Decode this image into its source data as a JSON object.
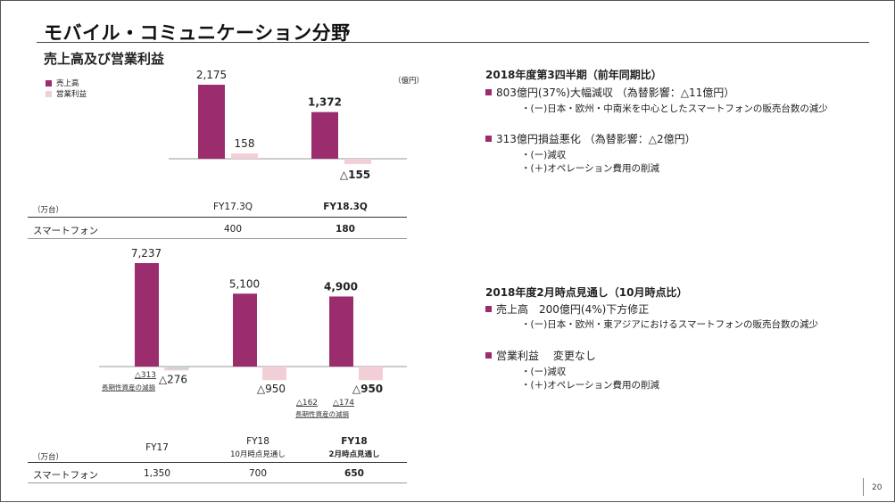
{
  "title": "モバイル・コミュニケーション分野",
  "subtitle": "売上高及び営業利益",
  "legend": {
    "sales": "売上高",
    "op_income": "営業利益"
  },
  "unit_oku": "（億円）",
  "unit_man": "（万台）",
  "row_label": "スマートフォン",
  "colors": {
    "sales": "#9b2d6e",
    "op_income": "#f2cfd7",
    "accent": "#9b2d6e"
  },
  "chart_data": [
    {
      "type": "bar",
      "title": "売上高及び営業利益 (FY17.3Q vs FY18.3Q)",
      "categories": [
        "FY17.3Q",
        "FY18.3Q"
      ],
      "series": [
        {
          "name": "売上高",
          "values": [
            2175,
            1372
          ],
          "labels": [
            "2,175",
            "1,372"
          ]
        },
        {
          "name": "営業利益",
          "values": [
            158,
            -155
          ],
          "labels": [
            "158",
            "△155"
          ]
        }
      ],
      "ylabel": "（億円）",
      "table": {
        "label": "スマートフォン",
        "unit": "（万台）",
        "values": [
          "400",
          "180"
        ]
      }
    },
    {
      "type": "bar",
      "title": "売上高及び営業利益 (FY17, FY18 見通し)",
      "categories": [
        "FY17",
        "FY18 10月時点見通し",
        "FY18 2月時点見通し"
      ],
      "category_main": [
        "FY17",
        "FY18",
        "FY18"
      ],
      "category_sub": [
        "",
        "10月時点見通し",
        "2月時点見通し"
      ],
      "series": [
        {
          "name": "売上高",
          "values": [
            7237,
            5100,
            4900
          ],
          "labels": [
            "7,237",
            "5,100",
            "4,900"
          ]
        },
        {
          "name": "営業利益",
          "values": [
            -276,
            -950,
            -950
          ],
          "labels": [
            "△276",
            "△950",
            "△950"
          ]
        }
      ],
      "annotations": [
        {
          "category": "FY17",
          "value": -313,
          "label": "△313",
          "note": "長期性資産の減損"
        },
        {
          "category": "FY18 10月時点見通し",
          "value": -162,
          "label": "△162",
          "note": "長期性資産の減損"
        },
        {
          "category": "FY18 2月時点見通し",
          "value": -174,
          "label": "△174",
          "note": ""
        }
      ],
      "table": {
        "label": "スマートフォン",
        "unit": "（万台）",
        "values": [
          "1,350",
          "700",
          "650"
        ]
      }
    }
  ],
  "right": {
    "q3": {
      "heading": "2018年度第3四半期（前年同期比）",
      "b1": "803億円(37%)大幅減収 （為替影響：△11億円）",
      "b1_sub": "・(ー)日本・欧州・中南米を中心としたスマートフォンの販売台数の減少",
      "b2": "313億円損益悪化 （為替影響：△2億円）",
      "b2_sub1": "・(ー)減収",
      "b2_sub2": "・(＋)オペレーション費用の削減"
    },
    "fc": {
      "heading": "2018年度2月時点見通し（10月時点比）",
      "b1": "売上高　200億円(4%)下方修正",
      "b1_sub": "・(ー)日本・欧州・東アジアにおけるスマートフォンの販売台数の減少",
      "b2": "営業利益　 変更なし",
      "b2_sub1": "・(ー)減収",
      "b2_sub2": "・(＋)オペレーション費用の削減"
    }
  },
  "page_number": "20"
}
